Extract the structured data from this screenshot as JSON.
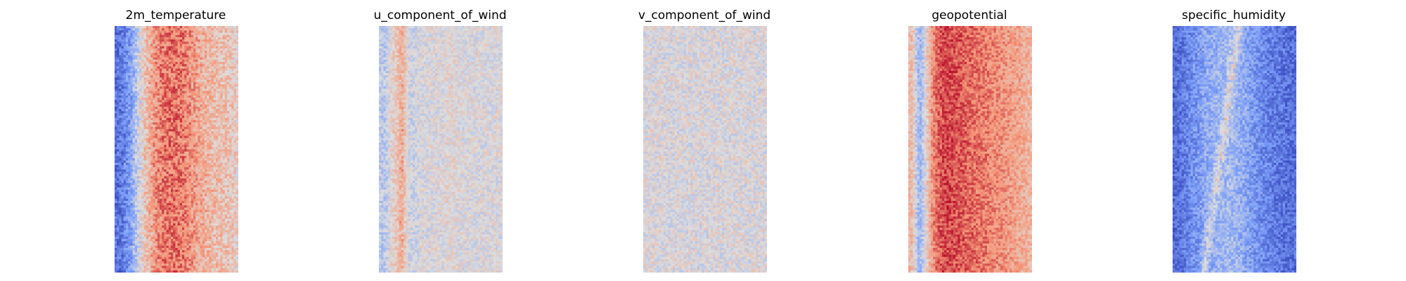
{
  "chart_data": [
    {
      "type": "heatmap",
      "title": "2m_temperature",
      "axes": "off",
      "colormap": "coolwarm",
      "grid_size": [
        55,
        110
      ],
      "column_profile": [
        -0.75,
        -0.75,
        -0.7,
        -0.6,
        -0.5,
        -0.3,
        -0.1,
        0.05,
        0.2,
        0.3,
        0.4,
        0.5,
        0.55,
        0.6,
        0.62,
        0.62,
        0.63,
        0.62,
        0.6,
        0.55,
        0.5,
        0.45,
        0.4,
        0.36,
        0.33,
        0.3,
        0.28,
        0.26,
        0.24,
        0.22,
        0.2,
        0.18,
        0.15,
        0.1
      ],
      "noise": 0.25,
      "seed": 11
    },
    {
      "type": "heatmap",
      "title": "u_component_of_wind",
      "axes": "off",
      "colormap": "coolwarm",
      "grid_size": [
        55,
        110
      ],
      "column_profile": [
        -0.15,
        -0.2,
        -0.1,
        0.05,
        0.15,
        0.1,
        0.05,
        0.0,
        -0.05,
        -0.1,
        -0.05,
        0.0,
        0.0,
        0.0,
        0.0,
        0.0,
        0.0,
        0.0,
        0.05,
        0.05,
        0.05,
        0.0,
        0.0,
        0.0,
        0.0,
        0.0,
        0.0,
        0.0,
        0.0,
        0.0,
        0.0,
        0.0,
        0.0,
        0.0
      ],
      "noise": 0.18,
      "stripes": [
        {
          "col": 6,
          "value": 0.35
        }
      ],
      "seed": 23
    },
    {
      "type": "heatmap",
      "title": "v_component_of_wind",
      "axes": "off",
      "colormap": "coolwarm",
      "grid_size": [
        55,
        110
      ],
      "column_profile": [
        0.0,
        0.0,
        0.0,
        0.0,
        0.0,
        0.0,
        0.0,
        0.0,
        0.0,
        0.0,
        0.0,
        0.0,
        0.0,
        0.0,
        0.0,
        0.0,
        0.0,
        0.0,
        0.0,
        0.0,
        0.0,
        0.0,
        0.0,
        0.0,
        0.0,
        0.0,
        0.0,
        0.0,
        0.0,
        0.0,
        0.0,
        0.0,
        0.0,
        0.0
      ],
      "noise": 0.2,
      "seed": 37
    },
    {
      "type": "heatmap",
      "title": "geopotential",
      "axes": "off",
      "colormap": "coolwarm",
      "grid_size": [
        55,
        110
      ],
      "column_profile": [
        0.3,
        0.2,
        -0.2,
        -0.3,
        -0.1,
        0.2,
        0.45,
        0.6,
        0.7,
        0.75,
        0.78,
        0.78,
        0.76,
        0.74,
        0.72,
        0.7,
        0.68,
        0.66,
        0.64,
        0.62,
        0.6,
        0.58,
        0.56,
        0.54,
        0.52,
        0.5,
        0.48,
        0.45,
        0.42,
        0.4,
        0.38,
        0.36,
        0.34,
        0.3
      ],
      "noise": 0.2,
      "seed": 53
    },
    {
      "type": "heatmap",
      "title": "specific_humidity",
      "axes": "off",
      "colormap": "coolwarm",
      "grid_size": [
        55,
        110
      ],
      "column_profile": [
        -0.8,
        -0.78,
        -0.75,
        -0.7,
        -0.65,
        -0.6,
        -0.55,
        -0.5,
        -0.45,
        -0.42,
        -0.4,
        -0.38,
        -0.35,
        -0.33,
        -0.3,
        -0.28,
        -0.3,
        -0.33,
        -0.36,
        -0.4,
        -0.45,
        -0.5,
        -0.55,
        -0.6,
        -0.62,
        -0.65,
        -0.68,
        -0.7,
        -0.72,
        -0.74,
        -0.76,
        -0.78,
        -0.79,
        -0.8
      ],
      "noise": 0.22,
      "diagonal_band": {
        "start_col": 18,
        "end_col": 8,
        "value": 0.35
      },
      "seed": 71
    }
  ]
}
